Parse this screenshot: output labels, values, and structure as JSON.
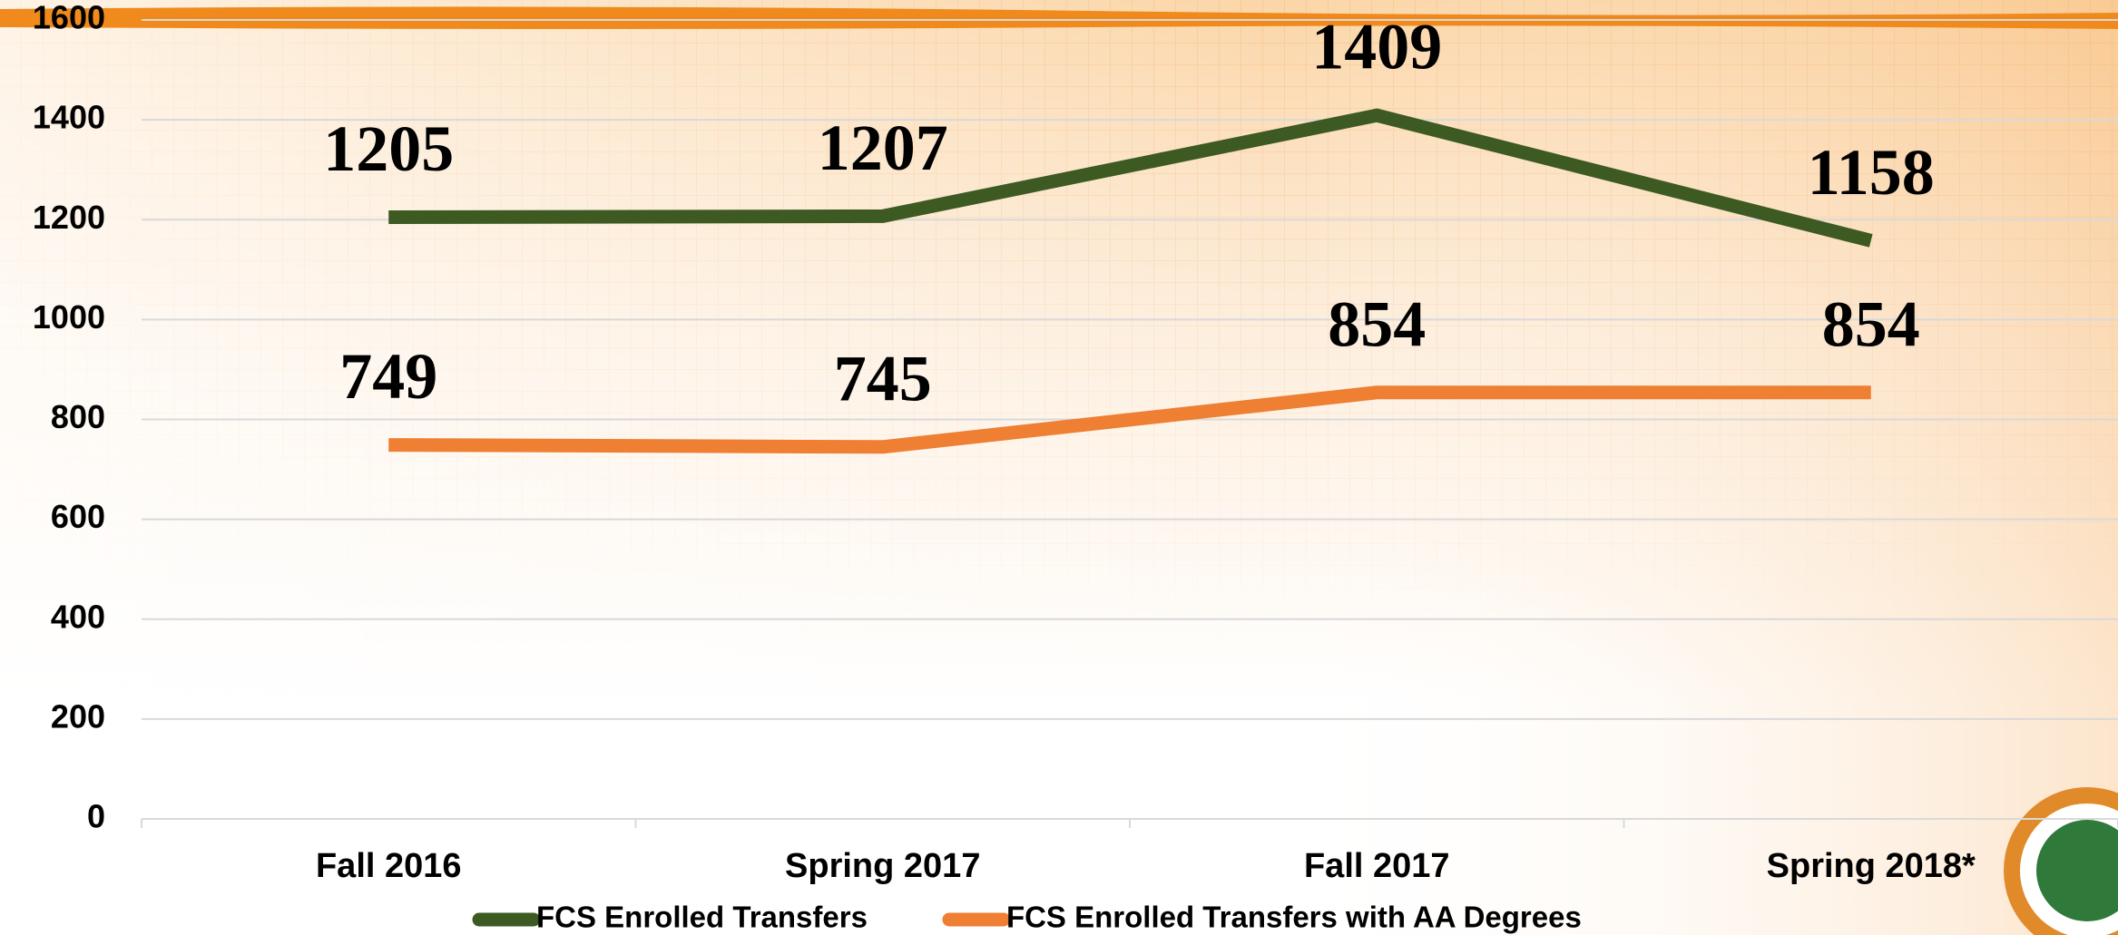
{
  "chart_data": {
    "type": "line",
    "categories": [
      "Fall 2016",
      "Spring 2017",
      "Fall 2017",
      "Spring 2018*"
    ],
    "series": [
      {
        "name": "FCS Enrolled Transfers",
        "color": "#3d5a23",
        "values": [
          1205,
          1207,
          1409,
          1158
        ]
      },
      {
        "name": "FCS Enrolled Transfers with AA Degrees",
        "color": "#ee7f33",
        "values": [
          749,
          745,
          854,
          854
        ]
      }
    ],
    "ylim": [
      0,
      1600
    ],
    "yticks": [
      0,
      200,
      400,
      600,
      800,
      1000,
      1200,
      1400,
      1600
    ],
    "grid": true,
    "legend": "bottom"
  }
}
